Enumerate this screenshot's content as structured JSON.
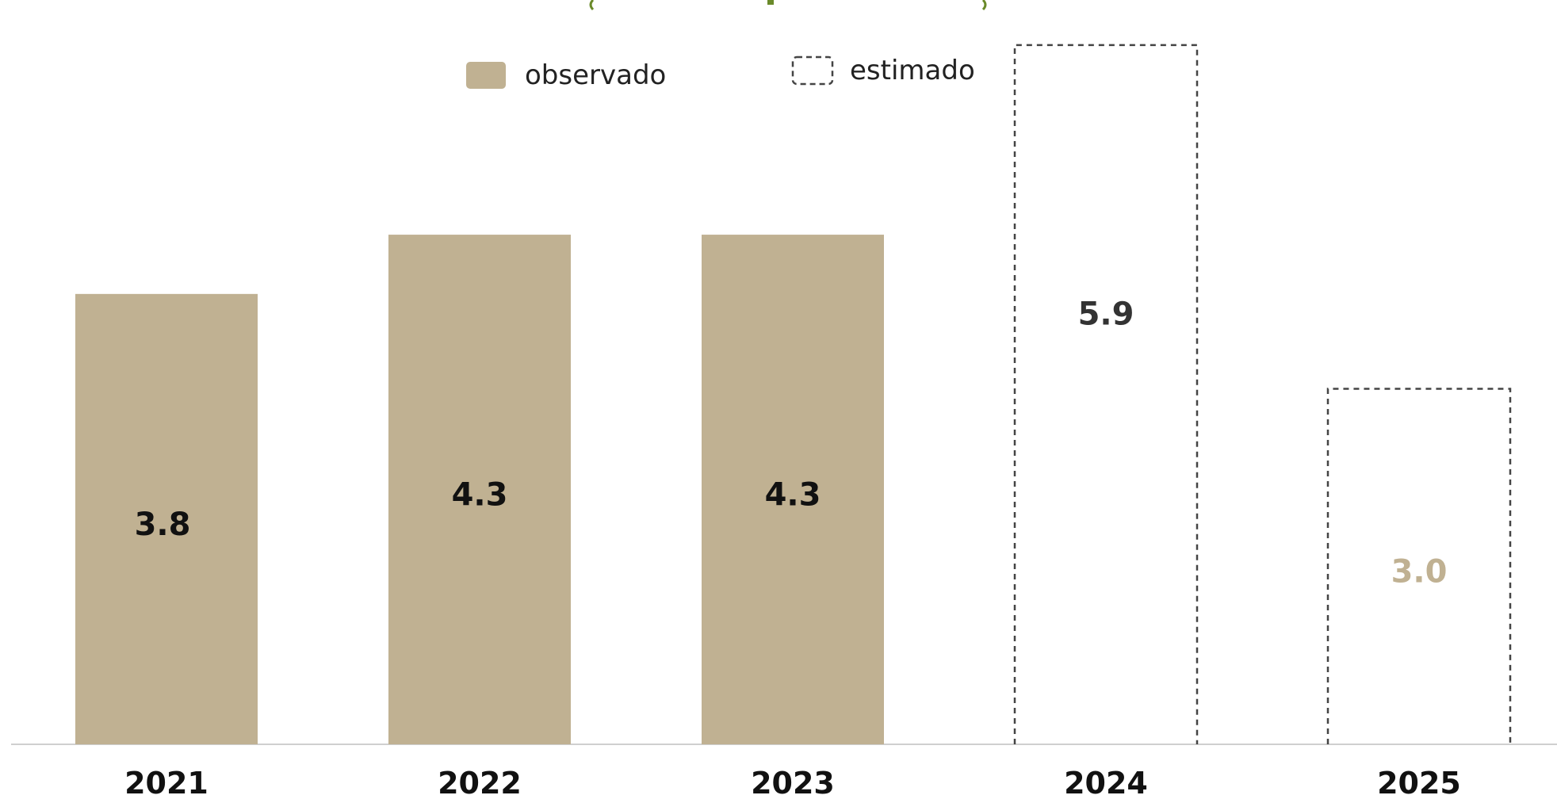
{
  "chart_data": {
    "type": "bar",
    "categories": [
      "2021",
      "2022",
      "2023",
      "2024",
      "2025"
    ],
    "values": [
      3.8,
      4.3,
      4.3,
      5.9,
      3.0
    ],
    "value_labels": [
      "3.8",
      "4.3",
      "4.3",
      "5.9",
      "3.0"
    ],
    "status": [
      "observado",
      "observado",
      "observado",
      "estimado",
      "estimado"
    ],
    "title": "",
    "xlabel": "",
    "ylabel": "",
    "ylim": [
      0,
      6.2
    ],
    "grid": false,
    "legend": {
      "placement": "top-center",
      "entries": [
        {
          "key": "observado",
          "label": "observado",
          "style": "filled"
        },
        {
          "key": "estimado",
          "label": "estimado",
          "style": "dashed-outline"
        }
      ]
    },
    "colors": {
      "observado_fill": "#c0b192",
      "estimado_stroke": "#444444",
      "label_on_filled": "#111111",
      "label_estimado_2024": "#333333",
      "label_estimado_2025": "#c0b192",
      "axis": "#cfcfcf",
      "partial_title": "#6a8a2a"
    }
  }
}
